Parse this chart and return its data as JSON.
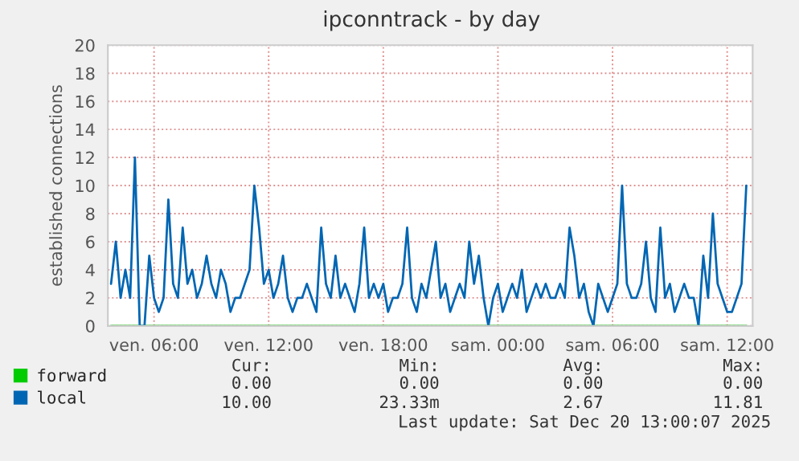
{
  "chart_data": {
    "type": "line",
    "title": "ipconntrack - by day",
    "ylabel": "established connections",
    "x": [
      "2025-12-19T03:45",
      "2025-12-19T04:00",
      "2025-12-19T04:15",
      "2025-12-19T04:30",
      "2025-12-19T04:45",
      "2025-12-19T05:00",
      "2025-12-19T05:15",
      "2025-12-19T05:30",
      "2025-12-19T05:45",
      "2025-12-19T06:00",
      "2025-12-19T06:15",
      "2025-12-19T06:30",
      "2025-12-19T06:45",
      "2025-12-19T07:00",
      "2025-12-19T07:15",
      "2025-12-19T07:30",
      "2025-12-19T07:45",
      "2025-12-19T08:00",
      "2025-12-19T08:15",
      "2025-12-19T08:30",
      "2025-12-19T08:45",
      "2025-12-19T09:00",
      "2025-12-19T09:15",
      "2025-12-19T09:30",
      "2025-12-19T09:45",
      "2025-12-19T10:00",
      "2025-12-19T10:15",
      "2025-12-19T10:30",
      "2025-12-19T10:45",
      "2025-12-19T11:00",
      "2025-12-19T11:15",
      "2025-12-19T11:30",
      "2025-12-19T11:45",
      "2025-12-19T12:00",
      "2025-12-19T12:15",
      "2025-12-19T12:30",
      "2025-12-19T12:45",
      "2025-12-19T13:00",
      "2025-12-19T13:15",
      "2025-12-19T13:30",
      "2025-12-19T13:45",
      "2025-12-19T14:00",
      "2025-12-19T14:15",
      "2025-12-19T14:30",
      "2025-12-19T14:45",
      "2025-12-19T15:00",
      "2025-12-19T15:15",
      "2025-12-19T15:30",
      "2025-12-19T15:45",
      "2025-12-19T16:00",
      "2025-12-19T16:15",
      "2025-12-19T16:30",
      "2025-12-19T16:45",
      "2025-12-19T17:00",
      "2025-12-19T17:15",
      "2025-12-19T17:30",
      "2025-12-19T17:45",
      "2025-12-19T18:00",
      "2025-12-19T18:15",
      "2025-12-19T18:30",
      "2025-12-19T18:45",
      "2025-12-19T19:00",
      "2025-12-19T19:15",
      "2025-12-19T19:30",
      "2025-12-19T19:45",
      "2025-12-19T20:00",
      "2025-12-19T20:15",
      "2025-12-19T20:30",
      "2025-12-19T20:45",
      "2025-12-19T21:00",
      "2025-12-19T21:15",
      "2025-12-19T21:30",
      "2025-12-19T21:45",
      "2025-12-19T22:00",
      "2025-12-19T22:15",
      "2025-12-19T22:30",
      "2025-12-19T22:45",
      "2025-12-19T23:00",
      "2025-12-19T23:15",
      "2025-12-19T23:30",
      "2025-12-19T23:45",
      "2025-12-20T00:00",
      "2025-12-20T00:15",
      "2025-12-20T00:30",
      "2025-12-20T00:45",
      "2025-12-20T01:00",
      "2025-12-20T01:15",
      "2025-12-20T01:30",
      "2025-12-20T01:45",
      "2025-12-20T02:00",
      "2025-12-20T02:15",
      "2025-12-20T02:30",
      "2025-12-20T02:45",
      "2025-12-20T03:00",
      "2025-12-20T03:15",
      "2025-12-20T03:30",
      "2025-12-20T03:45",
      "2025-12-20T04:00",
      "2025-12-20T04:15",
      "2025-12-20T04:30",
      "2025-12-20T04:45",
      "2025-12-20T05:00",
      "2025-12-20T05:15",
      "2025-12-20T05:30",
      "2025-12-20T05:45",
      "2025-12-20T06:00",
      "2025-12-20T06:15",
      "2025-12-20T06:30",
      "2025-12-20T06:45",
      "2025-12-20T07:00",
      "2025-12-20T07:15",
      "2025-12-20T07:30",
      "2025-12-20T07:45",
      "2025-12-20T08:00",
      "2025-12-20T08:15",
      "2025-12-20T08:30",
      "2025-12-20T08:45",
      "2025-12-20T09:00",
      "2025-12-20T09:15",
      "2025-12-20T09:30",
      "2025-12-20T09:45",
      "2025-12-20T10:00",
      "2025-12-20T10:15",
      "2025-12-20T10:30",
      "2025-12-20T10:45",
      "2025-12-20T11:00",
      "2025-12-20T11:15",
      "2025-12-20T11:30",
      "2025-12-20T11:45",
      "2025-12-20T12:00",
      "2025-12-20T12:15",
      "2025-12-20T12:30",
      "2025-12-20T12:45",
      "2025-12-20T13:00"
    ],
    "series": [
      {
        "name": "forward",
        "color": "#00cc00",
        "values": [
          0,
          0,
          0,
          0,
          0,
          0,
          0,
          0,
          0,
          0,
          0,
          0,
          0,
          0,
          0,
          0,
          0,
          0,
          0,
          0,
          0,
          0,
          0,
          0,
          0,
          0,
          0,
          0,
          0,
          0,
          0,
          0,
          0,
          0,
          0,
          0,
          0,
          0,
          0,
          0,
          0,
          0,
          0,
          0,
          0,
          0,
          0,
          0,
          0,
          0,
          0,
          0,
          0,
          0,
          0,
          0,
          0,
          0,
          0,
          0,
          0,
          0,
          0,
          0,
          0,
          0,
          0,
          0,
          0,
          0,
          0,
          0,
          0,
          0,
          0,
          0,
          0,
          0,
          0,
          0,
          0,
          0,
          0,
          0,
          0,
          0,
          0,
          0,
          0,
          0,
          0,
          0,
          0,
          0,
          0,
          0,
          0,
          0,
          0,
          0,
          0,
          0,
          0,
          0,
          0,
          0,
          0,
          0,
          0,
          0,
          0,
          0,
          0,
          0,
          0,
          0,
          0,
          0,
          0,
          0,
          0,
          0,
          0,
          0,
          0,
          0,
          0,
          0,
          0,
          0,
          0,
          0,
          0,
          0
        ]
      },
      {
        "name": "local",
        "color": "#0066b3",
        "values": [
          3,
          6,
          2,
          4,
          2,
          12,
          0,
          0,
          5,
          2,
          1,
          2,
          9,
          3,
          2,
          7,
          3,
          4,
          2,
          3,
          5,
          3,
          2,
          4,
          3,
          1,
          2,
          2,
          3,
          4,
          10,
          7,
          3,
          4,
          2,
          3,
          5,
          2,
          1,
          2,
          2,
          3,
          2,
          1,
          7,
          3,
          2,
          5,
          2,
          3,
          2,
          1,
          3,
          7,
          2,
          3,
          2,
          3,
          1,
          2,
          2,
          3,
          7,
          2,
          1,
          3,
          2,
          4,
          6,
          2,
          3,
          1,
          2,
          3,
          2,
          6,
          3,
          5,
          2,
          0,
          2,
          3,
          1,
          2,
          3,
          2,
          4,
          1,
          2,
          3,
          2,
          3,
          2,
          2,
          3,
          2,
          7,
          5,
          2,
          3,
          1,
          0,
          3,
          2,
          1,
          2,
          3,
          10,
          3,
          2,
          2,
          3,
          6,
          2,
          1,
          7,
          2,
          3,
          1,
          2,
          3,
          2,
          2,
          0,
          5,
          2,
          8,
          3,
          2,
          1,
          1,
          2,
          3,
          10
        ]
      }
    ],
    "xlim": [
      "2025-12-19T03:35",
      "2025-12-20T13:20"
    ],
    "xticks": [
      {
        "value": "2025-12-19T06:00",
        "label": "ven. 06:00"
      },
      {
        "value": "2025-12-19T12:00",
        "label": "ven. 12:00"
      },
      {
        "value": "2025-12-19T18:00",
        "label": "ven. 18:00"
      },
      {
        "value": "2025-12-20T00:00",
        "label": "sam. 00:00"
      },
      {
        "value": "2025-12-20T06:00",
        "label": "sam. 06:00"
      },
      {
        "value": "2025-12-20T12:00",
        "label": "sam. 12:00"
      }
    ],
    "ylim": [
      0,
      20
    ],
    "yticks": [
      0,
      2,
      4,
      6,
      8,
      10,
      12,
      14,
      16,
      18,
      20
    ],
    "grid": true,
    "legend": "bottom",
    "annotations": [
      "Cur:",
      "Min:",
      "Avg:",
      "Max:",
      "0.00",
      "0.00",
      "0.00",
      "0.00",
      "10.00",
      "23.33m",
      "2.67",
      "11.81",
      "Last update: Sat Dec 20 13:00:07 2025"
    ]
  }
}
